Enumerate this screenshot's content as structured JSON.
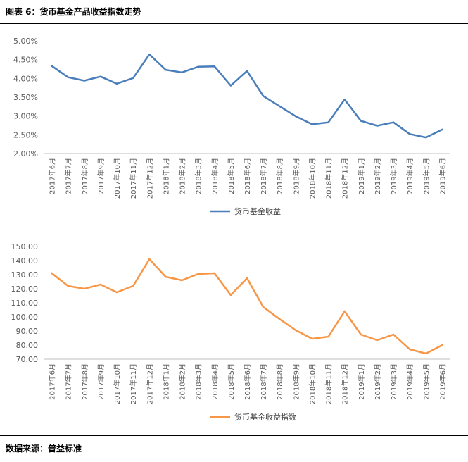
{
  "header": {
    "title": "图表 6：货币基金产品收益指数走势"
  },
  "footer": {
    "source": "数据来源：普益标准"
  },
  "colors": {
    "series1": "#4A7EBB",
    "series2": "#F79646"
  },
  "chart_data": [
    {
      "type": "line",
      "categories": [
        "2017年6月",
        "2017年7月",
        "2017年8月",
        "2017年9月",
        "2017年10月",
        "2017年11月",
        "2017年12月",
        "2018年1月",
        "2018年2月",
        "2018年3月",
        "2018年4月",
        "2018年5月",
        "2018年6月",
        "2018年7月",
        "2018年8月",
        "2018年9月",
        "2018年10月",
        "2018年11月",
        "2018年12月",
        "2019年1月",
        "2019年2月",
        "2019年3月",
        "2019年4月",
        "2019年5月",
        "2019年6月"
      ],
      "series": [
        {
          "name": "货币基金收益",
          "values": [
            4.33,
            4.03,
            3.94,
            4.05,
            3.86,
            4.01,
            4.64,
            4.23,
            4.16,
            4.31,
            4.32,
            3.81,
            4.2,
            3.53,
            3.26,
            2.99,
            2.78,
            2.83,
            3.44,
            2.87,
            2.74,
            2.83,
            2.52,
            2.43,
            2.64
          ]
        }
      ],
      "yticks": [
        "2.00%",
        "2.50%",
        "3.00%",
        "3.50%",
        "4.00%",
        "4.50%",
        "5.00%"
      ],
      "ylim": [
        2.0,
        5.0
      ],
      "grid": false,
      "legend": "bottom-center"
    },
    {
      "type": "line",
      "categories": [
        "2017年6月",
        "2017年7月",
        "2017年8月",
        "2017年9月",
        "2017年10月",
        "2017年11月",
        "2017年12月",
        "2018年1月",
        "2018年2月",
        "2018年3月",
        "2018年4月",
        "2018年5月",
        "2018年6月",
        "2018年7月",
        "2018年8月",
        "2018年9月",
        "2018年10月",
        "2018年11月",
        "2018年12月",
        "2019年1月",
        "2019年2月",
        "2019年3月",
        "2019年4月",
        "2019年5月",
        "2019年6月"
      ],
      "series": [
        {
          "name": "货币基金收益指数",
          "values": [
            131.0,
            122.0,
            120.0,
            123.0,
            117.5,
            122.0,
            141.0,
            128.5,
            126.0,
            130.5,
            131.0,
            115.5,
            127.5,
            107.0,
            98.5,
            90.5,
            84.5,
            86.0,
            104.0,
            87.5,
            83.5,
            87.5,
            77.0,
            74.0,
            80.0
          ]
        }
      ],
      "yticks": [
        "70.00",
        "80.00",
        "90.00",
        "100.00",
        "110.00",
        "120.00",
        "130.00",
        "140.00",
        "150.00"
      ],
      "ylim": [
        70,
        150
      ],
      "grid": false,
      "legend": "bottom-center"
    }
  ]
}
